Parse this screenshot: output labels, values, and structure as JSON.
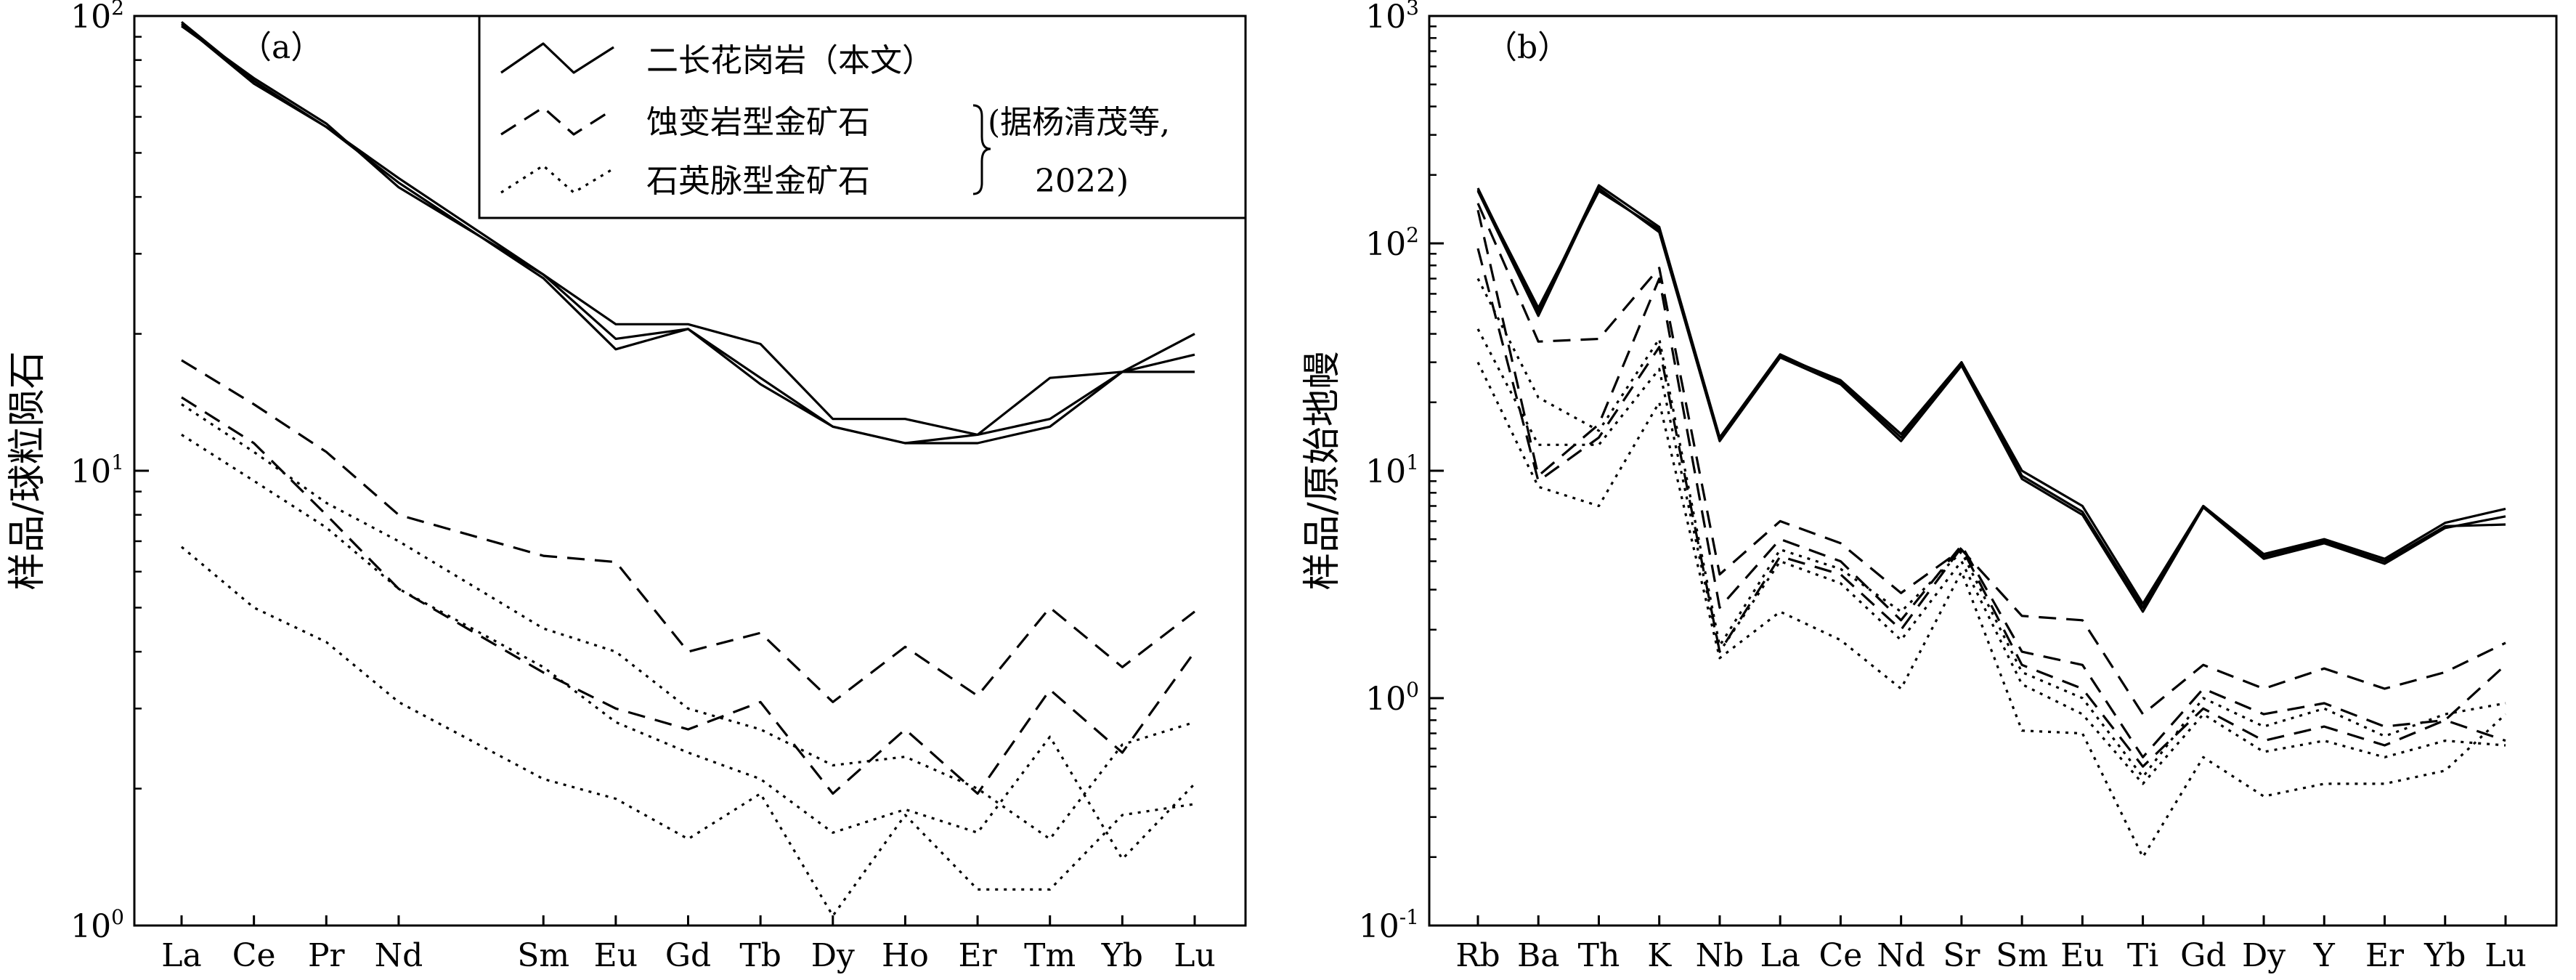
{
  "chart_data": [
    {
      "type": "line",
      "panel_label": "（a）",
      "ylabel": "样品/球粒陨石",
      "yscale": "log",
      "ylim": [
        1,
        100
      ],
      "y_ticks": [
        {
          "base": "10",
          "exp": "0"
        },
        {
          "base": "10",
          "exp": "1"
        },
        {
          "base": "10",
          "exp": "2"
        }
      ],
      "categories": [
        "La",
        "Ce",
        "Pr",
        "Nd",
        "Sm",
        "Eu",
        "Gd",
        "Tb",
        "Dy",
        "Ho",
        "Er",
        "Tm",
        "Yb",
        "Lu"
      ],
      "category_positions": [
        0,
        1,
        2,
        3,
        5,
        6,
        7,
        8,
        9,
        10,
        11,
        12,
        13,
        14
      ],
      "legend": {
        "placement": "top-right",
        "entries": [
          {
            "style": "solid",
            "label": "二长花岗岩（本文）"
          },
          {
            "style": "dashed",
            "label": "蚀变岩型金矿石"
          },
          {
            "style": "dotted",
            "label": "石英脉型金矿石"
          }
        ],
        "citation_line1": "(据杨清茂等,",
        "citation_line2": "2022)"
      },
      "series": [
        {
          "style": "solid",
          "values": [
            97,
            72,
            57,
            44,
            27,
            21,
            21,
            19,
            13,
            13,
            12,
            16,
            16.5,
            16.5
          ]
        },
        {
          "style": "solid",
          "values": [
            96,
            71,
            57,
            43,
            26.5,
            18.5,
            20.5,
            15.5,
            12.5,
            11.5,
            11.5,
            12.5,
            16.5,
            20
          ]
        },
        {
          "style": "solid",
          "values": [
            95,
            73,
            58,
            42,
            27,
            19.5,
            20.5,
            16,
            12.5,
            11.5,
            12,
            13,
            16.5,
            18
          ]
        },
        {
          "style": "dashed",
          "values": [
            17.5,
            14,
            11,
            8,
            6.5,
            6.3,
            4,
            4.4,
            3.1,
            4.1,
            3.2,
            5,
            3.7,
            4.9
          ]
        },
        {
          "style": "dashed",
          "values": [
            14.5,
            11.5,
            8,
            5.5,
            3.6,
            3,
            2.7,
            3.1,
            1.95,
            2.7,
            1.95,
            3.3,
            2.4,
            4
          ]
        },
        {
          "style": "dotted",
          "values": [
            14,
            11,
            8.5,
            7,
            4.5,
            4,
            3,
            2.7,
            2.25,
            2.35,
            2,
            1.55,
            2.5,
            2.8
          ]
        },
        {
          "style": "dotted",
          "values": [
            12,
            9.5,
            7.5,
            5.5,
            3.7,
            2.8,
            2.4,
            2.1,
            1.6,
            1.8,
            1.6,
            2.6,
            1.4,
            2.05
          ]
        },
        {
          "style": "dotted",
          "values": [
            6.8,
            5,
            4.2,
            3.1,
            2.1,
            1.9,
            1.55,
            1.95,
            1.05,
            1.75,
            1.2,
            1.2,
            1.75,
            1.85
          ]
        }
      ]
    },
    {
      "type": "line",
      "panel_label": "（b）",
      "ylabel": "样品/原始地幔",
      "yscale": "log",
      "ylim": [
        0.1,
        1000
      ],
      "y_ticks": [
        {
          "base": "10",
          "exp": "-1"
        },
        {
          "base": "10",
          "exp": "0"
        },
        {
          "base": "10",
          "exp": "1"
        },
        {
          "base": "10",
          "exp": "2"
        },
        {
          "base": "10",
          "exp": "3"
        }
      ],
      "categories": [
        "Rb",
        "Ba",
        "Th",
        "K",
        "Nb",
        "La",
        "Ce",
        "Nd",
        "Sr",
        "Sm",
        "Eu",
        "Ti",
        "Gd",
        "Dy",
        "Y",
        "Er",
        "Yb",
        "Lu"
      ],
      "category_positions": [
        0,
        1,
        2,
        3,
        4,
        5,
        6,
        7,
        8,
        9,
        10,
        11,
        12,
        13,
        14,
        15,
        16,
        17
      ],
      "series": [
        {
          "style": "solid",
          "values": [
            175,
            50,
            180,
            118,
            14,
            32,
            25,
            14.5,
            30,
            10,
            7,
            2.6,
            7,
            4.3,
            5,
            4.1,
            5.9,
            6.8
          ]
        },
        {
          "style": "solid",
          "values": [
            170,
            48,
            175,
            112,
            13.5,
            31.5,
            24,
            13.5,
            29,
            9.2,
            6.4,
            2.4,
            6.9,
            4.1,
            4.8,
            3.9,
            5.6,
            6.3
          ]
        },
        {
          "style": "solid",
          "values": [
            172,
            52,
            170,
            115,
            14,
            32.5,
            24.5,
            14,
            30,
            9.5,
            6.6,
            2.5,
            7,
            4.2,
            4.9,
            4,
            5.7,
            5.8
          ]
        },
        {
          "style": "dashed",
          "values": [
            150,
            37,
            38,
            78,
            3.5,
            6,
            4.8,
            2.9,
            4.5,
            2.3,
            2.2,
            0.85,
            1.4,
            1.1,
            1.35,
            1.1,
            1.3,
            1.75
          ]
        },
        {
          "style": "dashed",
          "values": [
            140,
            9.5,
            16,
            70,
            2.5,
            5,
            4,
            2.2,
            4.7,
            1.6,
            1.4,
            0.55,
            1.1,
            0.85,
            0.95,
            0.75,
            0.8,
            1.4
          ]
        },
        {
          "style": "dashed",
          "values": [
            95,
            9,
            14,
            35,
            1.6,
            4.2,
            3.5,
            2,
            4.6,
            1.4,
            1.1,
            0.5,
            0.9,
            0.65,
            0.75,
            0.62,
            0.8,
            0.65
          ]
        },
        {
          "style": "dotted",
          "values": [
            70,
            21,
            15,
            38,
            1.7,
            4.5,
            3.7,
            2.4,
            4.4,
            1.3,
            1,
            0.45,
            1,
            0.75,
            0.9,
            0.68,
            0.85,
            0.95
          ]
        },
        {
          "style": "dotted",
          "values": [
            42,
            13,
            13,
            28,
            1.6,
            4,
            3.2,
            1.8,
            4,
            1.15,
            0.85,
            0.42,
            0.85,
            0.58,
            0.65,
            0.55,
            0.65,
            0.62
          ]
        },
        {
          "style": "dotted",
          "values": [
            30,
            8.5,
            7,
            20,
            1.5,
            2.4,
            1.8,
            1.1,
            3.6,
            0.72,
            0.7,
            0.2,
            0.55,
            0.37,
            0.42,
            0.42,
            0.48,
            0.85
          ]
        }
      ]
    }
  ]
}
